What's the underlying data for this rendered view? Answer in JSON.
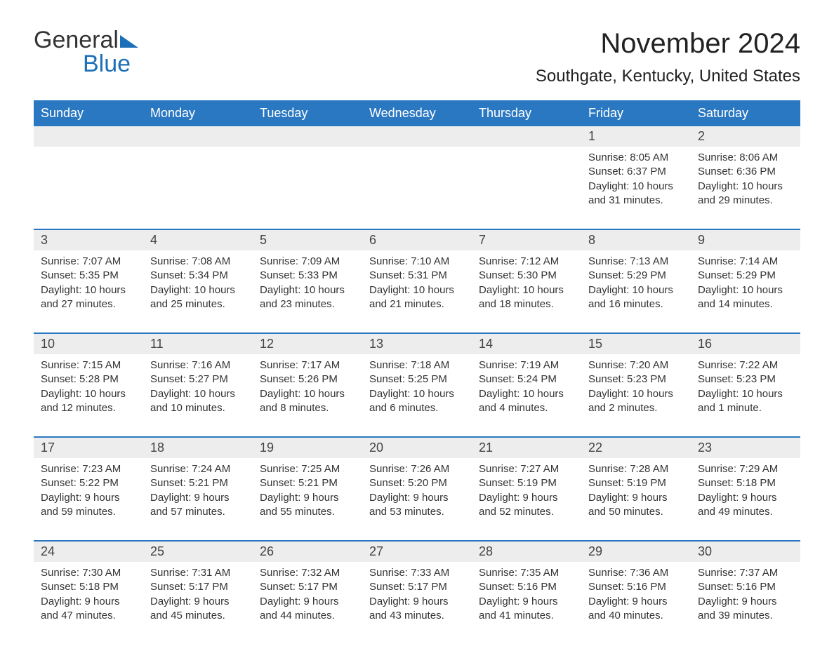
{
  "logo": {
    "text1": "General",
    "text2": "Blue"
  },
  "title": "November 2024",
  "location": "Southgate, Kentucky, United States",
  "colors": {
    "header_bg": "#2b78c2",
    "header_fg": "#ffffff",
    "daynum_bg": "#ededed",
    "row_border": "#2b78c2",
    "text": "#333333",
    "logo_blue": "#1d70b8",
    "background": "#ffffff"
  },
  "layout": {
    "columns": 7,
    "rows": 5,
    "col_width_pct": 14.28
  },
  "weekdays": [
    "Sunday",
    "Monday",
    "Tuesday",
    "Wednesday",
    "Thursday",
    "Friday",
    "Saturday"
  ],
  "weeks": [
    [
      null,
      null,
      null,
      null,
      null,
      {
        "n": "1",
        "sr": "Sunrise: 8:05 AM",
        "ss": "Sunset: 6:37 PM",
        "dl": "Daylight: 10 hours and 31 minutes."
      },
      {
        "n": "2",
        "sr": "Sunrise: 8:06 AM",
        "ss": "Sunset: 6:36 PM",
        "dl": "Daylight: 10 hours and 29 minutes."
      }
    ],
    [
      {
        "n": "3",
        "sr": "Sunrise: 7:07 AM",
        "ss": "Sunset: 5:35 PM",
        "dl": "Daylight: 10 hours and 27 minutes."
      },
      {
        "n": "4",
        "sr": "Sunrise: 7:08 AM",
        "ss": "Sunset: 5:34 PM",
        "dl": "Daylight: 10 hours and 25 minutes."
      },
      {
        "n": "5",
        "sr": "Sunrise: 7:09 AM",
        "ss": "Sunset: 5:33 PM",
        "dl": "Daylight: 10 hours and 23 minutes."
      },
      {
        "n": "6",
        "sr": "Sunrise: 7:10 AM",
        "ss": "Sunset: 5:31 PM",
        "dl": "Daylight: 10 hours and 21 minutes."
      },
      {
        "n": "7",
        "sr": "Sunrise: 7:12 AM",
        "ss": "Sunset: 5:30 PM",
        "dl": "Daylight: 10 hours and 18 minutes."
      },
      {
        "n": "8",
        "sr": "Sunrise: 7:13 AM",
        "ss": "Sunset: 5:29 PM",
        "dl": "Daylight: 10 hours and 16 minutes."
      },
      {
        "n": "9",
        "sr": "Sunrise: 7:14 AM",
        "ss": "Sunset: 5:29 PM",
        "dl": "Daylight: 10 hours and 14 minutes."
      }
    ],
    [
      {
        "n": "10",
        "sr": "Sunrise: 7:15 AM",
        "ss": "Sunset: 5:28 PM",
        "dl": "Daylight: 10 hours and 12 minutes."
      },
      {
        "n": "11",
        "sr": "Sunrise: 7:16 AM",
        "ss": "Sunset: 5:27 PM",
        "dl": "Daylight: 10 hours and 10 minutes."
      },
      {
        "n": "12",
        "sr": "Sunrise: 7:17 AM",
        "ss": "Sunset: 5:26 PM",
        "dl": "Daylight: 10 hours and 8 minutes."
      },
      {
        "n": "13",
        "sr": "Sunrise: 7:18 AM",
        "ss": "Sunset: 5:25 PM",
        "dl": "Daylight: 10 hours and 6 minutes."
      },
      {
        "n": "14",
        "sr": "Sunrise: 7:19 AM",
        "ss": "Sunset: 5:24 PM",
        "dl": "Daylight: 10 hours and 4 minutes."
      },
      {
        "n": "15",
        "sr": "Sunrise: 7:20 AM",
        "ss": "Sunset: 5:23 PM",
        "dl": "Daylight: 10 hours and 2 minutes."
      },
      {
        "n": "16",
        "sr": "Sunrise: 7:22 AM",
        "ss": "Sunset: 5:23 PM",
        "dl": "Daylight: 10 hours and 1 minute."
      }
    ],
    [
      {
        "n": "17",
        "sr": "Sunrise: 7:23 AM",
        "ss": "Sunset: 5:22 PM",
        "dl": "Daylight: 9 hours and 59 minutes."
      },
      {
        "n": "18",
        "sr": "Sunrise: 7:24 AM",
        "ss": "Sunset: 5:21 PM",
        "dl": "Daylight: 9 hours and 57 minutes."
      },
      {
        "n": "19",
        "sr": "Sunrise: 7:25 AM",
        "ss": "Sunset: 5:21 PM",
        "dl": "Daylight: 9 hours and 55 minutes."
      },
      {
        "n": "20",
        "sr": "Sunrise: 7:26 AM",
        "ss": "Sunset: 5:20 PM",
        "dl": "Daylight: 9 hours and 53 minutes."
      },
      {
        "n": "21",
        "sr": "Sunrise: 7:27 AM",
        "ss": "Sunset: 5:19 PM",
        "dl": "Daylight: 9 hours and 52 minutes."
      },
      {
        "n": "22",
        "sr": "Sunrise: 7:28 AM",
        "ss": "Sunset: 5:19 PM",
        "dl": "Daylight: 9 hours and 50 minutes."
      },
      {
        "n": "23",
        "sr": "Sunrise: 7:29 AM",
        "ss": "Sunset: 5:18 PM",
        "dl": "Daylight: 9 hours and 49 minutes."
      }
    ],
    [
      {
        "n": "24",
        "sr": "Sunrise: 7:30 AM",
        "ss": "Sunset: 5:18 PM",
        "dl": "Daylight: 9 hours and 47 minutes."
      },
      {
        "n": "25",
        "sr": "Sunrise: 7:31 AM",
        "ss": "Sunset: 5:17 PM",
        "dl": "Daylight: 9 hours and 45 minutes."
      },
      {
        "n": "26",
        "sr": "Sunrise: 7:32 AM",
        "ss": "Sunset: 5:17 PM",
        "dl": "Daylight: 9 hours and 44 minutes."
      },
      {
        "n": "27",
        "sr": "Sunrise: 7:33 AM",
        "ss": "Sunset: 5:17 PM",
        "dl": "Daylight: 9 hours and 43 minutes."
      },
      {
        "n": "28",
        "sr": "Sunrise: 7:35 AM",
        "ss": "Sunset: 5:16 PM",
        "dl": "Daylight: 9 hours and 41 minutes."
      },
      {
        "n": "29",
        "sr": "Sunrise: 7:36 AM",
        "ss": "Sunset: 5:16 PM",
        "dl": "Daylight: 9 hours and 40 minutes."
      },
      {
        "n": "30",
        "sr": "Sunrise: 7:37 AM",
        "ss": "Sunset: 5:16 PM",
        "dl": "Daylight: 9 hours and 39 minutes."
      }
    ]
  ]
}
